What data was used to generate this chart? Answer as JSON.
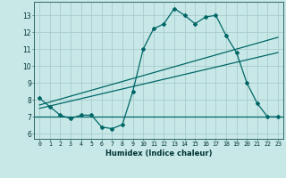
{
  "title": "",
  "xlabel": "Humidex (Indice chaleur)",
  "bg_color": "#c8e8e8",
  "grid_color": "#aacccc",
  "line_color": "#006666",
  "xlim": [
    -0.5,
    23.5
  ],
  "ylim": [
    5.7,
    13.8
  ],
  "xticks": [
    0,
    1,
    2,
    3,
    4,
    5,
    6,
    7,
    8,
    9,
    10,
    11,
    12,
    13,
    14,
    15,
    16,
    17,
    18,
    19,
    20,
    21,
    22,
    23
  ],
  "yticks": [
    6,
    7,
    8,
    9,
    10,
    11,
    12,
    13
  ],
  "series1_x": [
    0,
    1,
    2,
    3,
    4,
    5,
    6,
    7,
    8,
    9,
    10,
    11,
    12,
    13,
    14,
    15,
    16,
    17,
    18,
    19,
    20,
    21,
    22,
    23
  ],
  "series1_y": [
    8.1,
    7.6,
    7.1,
    6.9,
    7.1,
    7.1,
    6.4,
    6.3,
    6.55,
    8.5,
    11.0,
    12.2,
    12.5,
    13.4,
    13.0,
    12.5,
    12.9,
    13.0,
    11.8,
    10.8,
    9.0,
    7.8,
    7.0,
    7.0
  ],
  "trend1_x": [
    0,
    23
  ],
  "trend1_y": [
    7.7,
    11.7
  ],
  "trend2_x": [
    0,
    23
  ],
  "trend2_y": [
    7.5,
    10.8
  ],
  "hline_y": 7.0
}
